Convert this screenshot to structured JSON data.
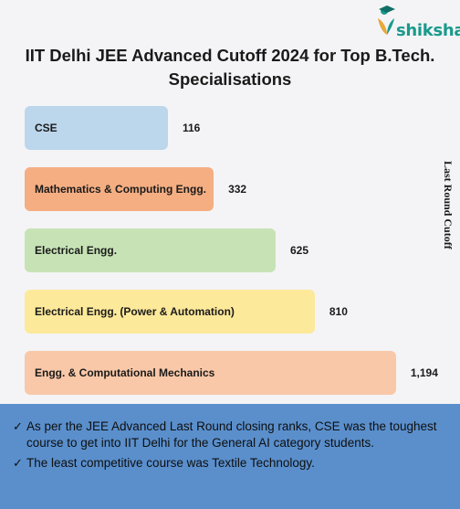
{
  "brand": {
    "name": "shiksha"
  },
  "chart_data": {
    "type": "bar",
    "orientation": "horizontal",
    "title": "IIT Delhi JEE Advanced Cutoff 2024 for Top B.Tech. Specialisations",
    "ylabel": "Last Round Cutoff",
    "categories": [
      "CSE",
      "Mathematics & Computing Engg.",
      "Electrical Engg.",
      "Electrical Engg. (Power & Automation)",
      "Engg. & Computational Mechanics"
    ],
    "values": [
      116,
      332,
      625,
      810,
      1194
    ],
    "value_labels": [
      "116",
      "332",
      "625",
      "810",
      "1,194"
    ],
    "colors": [
      "#bcd6ec",
      "#f5ae82",
      "#c7e3b6",
      "#fde99a",
      "#f9c8a8"
    ],
    "legend": "none",
    "grid": false
  },
  "notes": [
    "As per the JEE Advanced Last Round closing ranks, CSE was the toughest course to get into IIT Delhi for the General AI category students.",
    "The least competitive course was Textile Technology."
  ],
  "colors": {
    "footer_bg": "#5a8fcc",
    "brand": "#1a9a8c"
  }
}
